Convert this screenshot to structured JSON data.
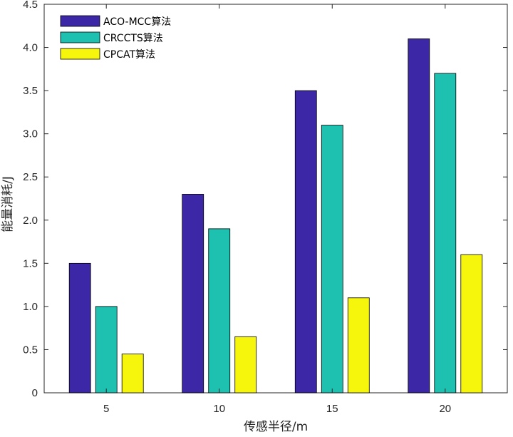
{
  "chart_data": {
    "type": "bar",
    "categories": [
      "5",
      "10",
      "15",
      "20"
    ],
    "series": [
      {
        "name": "ACO-MCC算法",
        "color": "#3c27a7",
        "values": [
          1.5,
          2.3,
          3.5,
          4.1
        ]
      },
      {
        "name": "CRCCTS算法",
        "color": "#1ec0b0",
        "values": [
          1.0,
          1.9,
          3.1,
          3.7
        ]
      },
      {
        "name": "CPCAT算法",
        "color": "#f6f60d",
        "values": [
          0.45,
          0.65,
          1.1,
          1.6
        ]
      }
    ],
    "xlabel": "传感半径/m",
    "ylabel": "能量消耗/J",
    "ylim": [
      0,
      4.5
    ],
    "yticks": [
      "0",
      "0.5",
      "1.0",
      "1.5",
      "2.0",
      "2.5",
      "3.0",
      "3.5",
      "4.0",
      "4.5"
    ],
    "grid": false,
    "legend_position": "top-left"
  }
}
